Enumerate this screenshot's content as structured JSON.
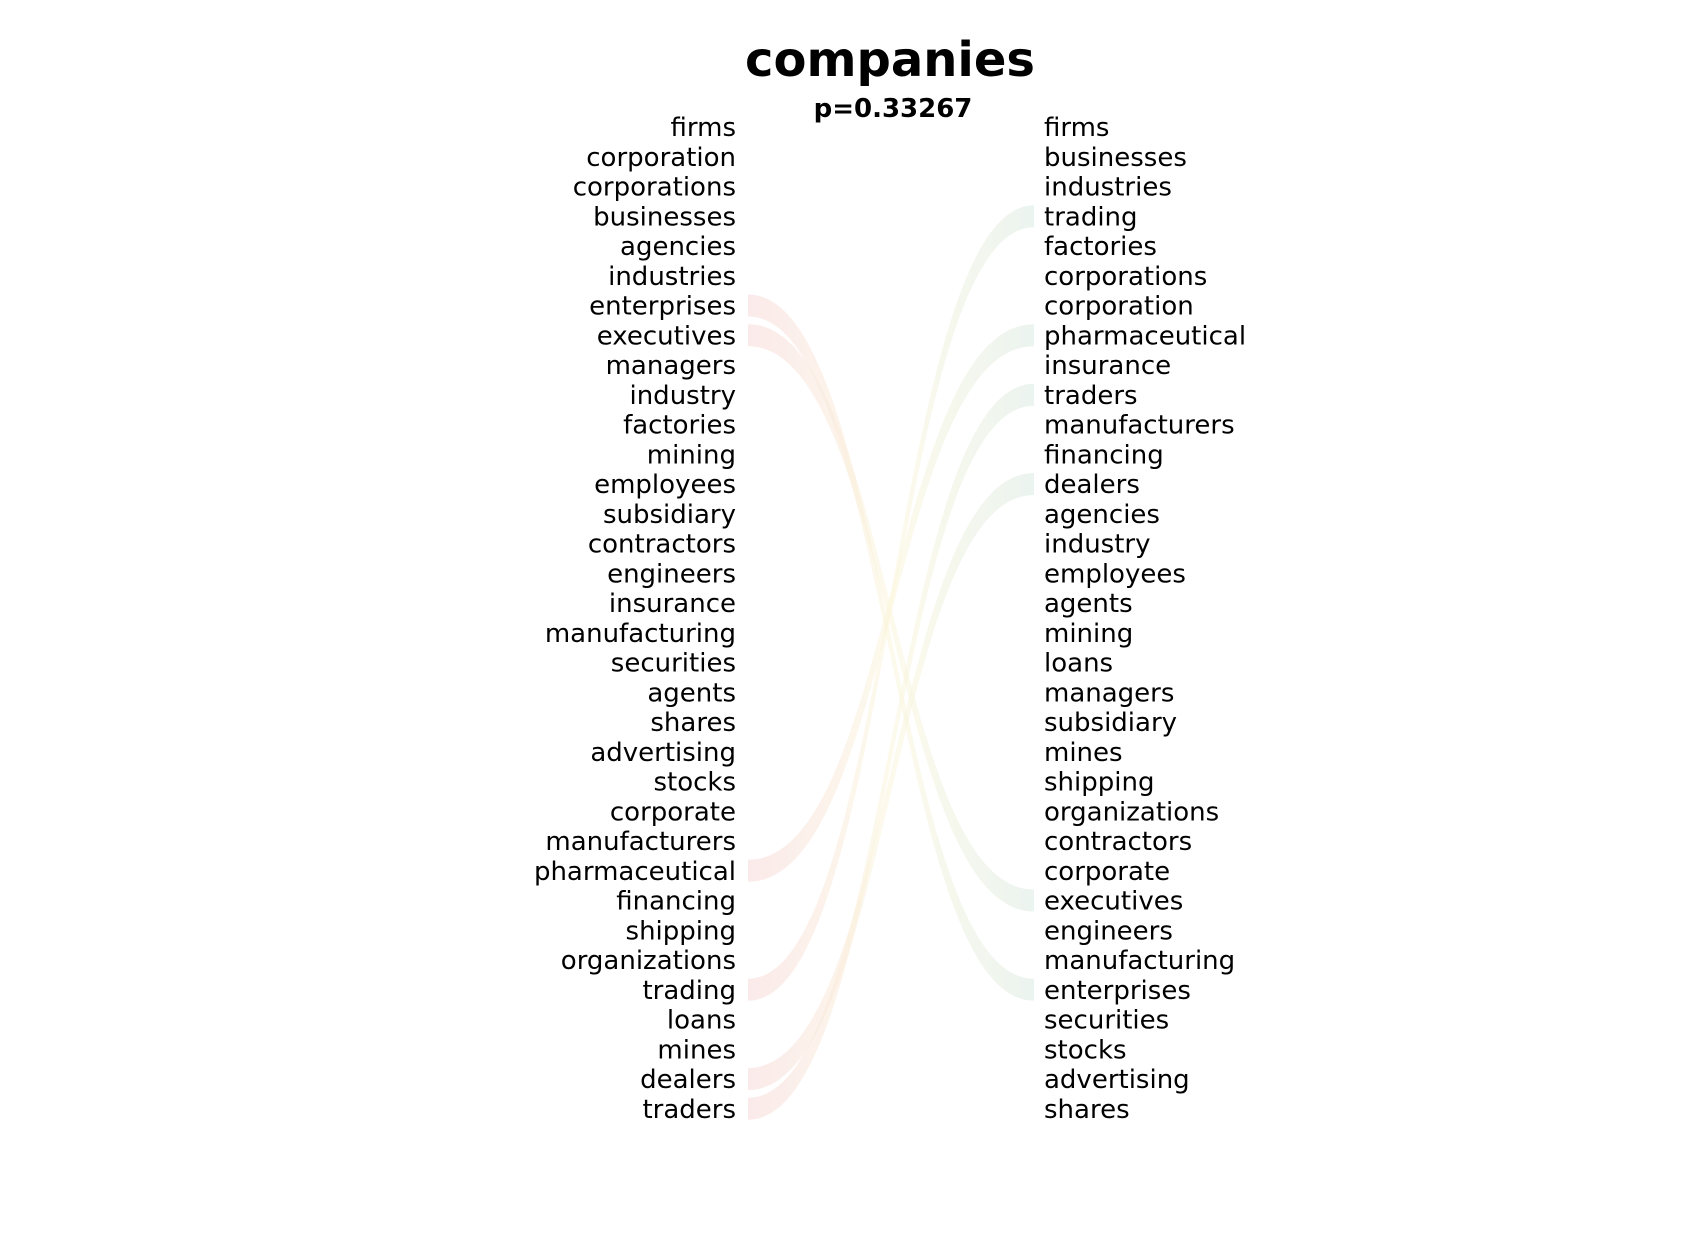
{
  "chart_data": {
    "type": "bump",
    "title": "companies",
    "subtitle": "p=0.33267",
    "left_ranking": [
      "firms",
      "corporation",
      "corporations",
      "businesses",
      "agencies",
      "industries",
      "enterprises",
      "executives",
      "managers",
      "industry",
      "factories",
      "mining",
      "employees",
      "subsidiary",
      "contractors",
      "engineers",
      "insurance",
      "manufacturing",
      "securities",
      "agents",
      "shares",
      "advertising",
      "stocks",
      "corporate",
      "manufacturers",
      "pharmaceutical",
      "financing",
      "shipping",
      "organizations",
      "trading",
      "loans",
      "mines",
      "dealers",
      "traders"
    ],
    "right_ranking": [
      "firms",
      "businesses",
      "industries",
      "trading",
      "factories",
      "corporations",
      "corporation",
      "pharmaceutical",
      "insurance",
      "traders",
      "manufacturers",
      "financing",
      "dealers",
      "agencies",
      "industry",
      "employees",
      "agents",
      "mining",
      "loans",
      "managers",
      "subsidiary",
      "mines",
      "shipping",
      "organizations",
      "contractors",
      "corporate",
      "executives",
      "engineers",
      "manufacturing",
      "enterprises",
      "securities",
      "stocks",
      "advertising",
      "shares"
    ],
    "links": [
      {
        "word": "enterprises",
        "direction": "down"
      },
      {
        "word": "executives",
        "direction": "down"
      },
      {
        "word": "pharmaceutical",
        "direction": "up"
      },
      {
        "word": "trading",
        "direction": "up"
      },
      {
        "word": "dealers",
        "direction": "up"
      },
      {
        "word": "traders",
        "direction": "up"
      }
    ],
    "colors": {
      "down_link": "#f7d9d9",
      "up_link": "#dcebe2",
      "mid_link": "#fbf6dc"
    }
  }
}
